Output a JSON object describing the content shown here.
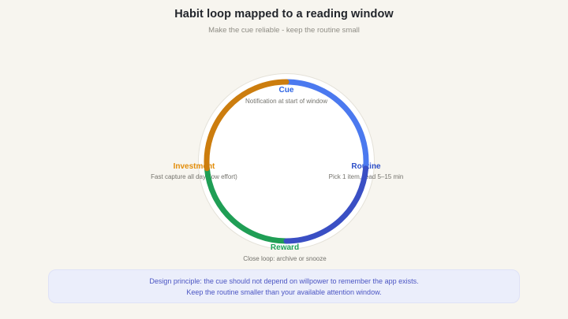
{
  "header": {
    "title": "Habit loop mapped to a reading window",
    "subtitle": "Make the cue reliable - keep the routine small"
  },
  "diagram": {
    "segments": [
      {
        "id": "cue",
        "label": "Cue",
        "description": "Notification at start of window",
        "color": "#4b79ef",
        "label_color": "#2d64e4",
        "start_angle": -90,
        "end_angle": 5
      },
      {
        "id": "routine",
        "label": "Routine",
        "description": "Pick 1 item, read 5–15 min",
        "color": "#3a4fc4",
        "label_color": "#2d4fc8",
        "start_angle": 5,
        "end_angle": 90
      },
      {
        "id": "reward",
        "label": "Reward",
        "description": "Close loop: archive or snooze",
        "color": "#1f9e55",
        "label_color": "#1da358",
        "start_angle": 90,
        "end_angle": 175
      },
      {
        "id": "investment",
        "label": "Investment",
        "description": "Fast capture all day (low effort)",
        "color": "#cc7d0e",
        "label_color": "#e28d0b",
        "start_angle": 175,
        "end_angle": 270
      }
    ]
  },
  "callout": {
    "line1": "Design principle: the cue should not depend on willpower to remember the app exists.",
    "line2": "Keep the routine smaller than your available attention window."
  },
  "colors": {
    "page_background": "#f7f5ef",
    "circle_fill": "#ffffff",
    "circle_border": "#e4e1d8",
    "callout_background": "#ebeefb",
    "callout_text": "#4b55c3"
  }
}
